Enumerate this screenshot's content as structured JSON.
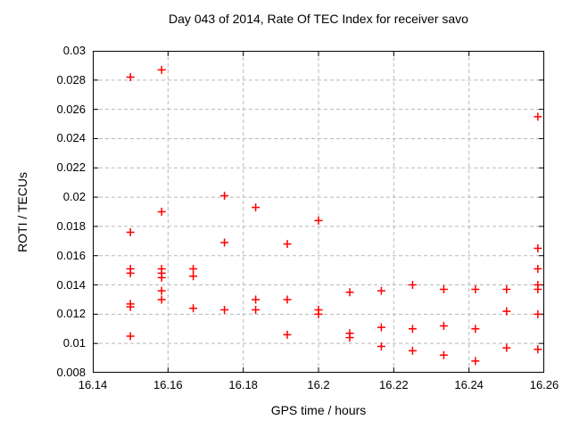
{
  "chart_data": {
    "type": "scatter",
    "title": "Day 043 of 2014, Rate Of TEC Index for receiver savo",
    "xlabel": "GPS time / hours",
    "ylabel": "ROTI / TECUs",
    "xlim": [
      16.14,
      16.26
    ],
    "ylim": [
      0.008,
      0.03
    ],
    "xtick_values": [
      16.14,
      16.16,
      16.18,
      16.2,
      16.22,
      16.24,
      16.26
    ],
    "xtick_labels": [
      "16.14",
      "16.16",
      "16.18",
      "16.2",
      "16.22",
      "16.24",
      "16.26"
    ],
    "ytick_values": [
      0.008,
      0.01,
      0.012,
      0.014,
      0.016,
      0.018,
      0.02,
      0.022,
      0.024,
      0.026,
      0.028,
      0.03
    ],
    "ytick_labels": [
      "0.008",
      "0.01",
      "0.012",
      "0.014",
      "0.016",
      "0.018",
      "0.02",
      "0.022",
      "0.024",
      "0.026",
      "0.028",
      "0.03"
    ],
    "grid": true,
    "legend": false,
    "marker": "plus",
    "marker_color": "#ff0000",
    "grid_color": "#b8b8b8",
    "border_color": "#000000",
    "series": [
      {
        "name": "ROTI",
        "points": [
          [
            16.15,
            0.0282
          ],
          [
            16.15,
            0.0176
          ],
          [
            16.15,
            0.0151
          ],
          [
            16.15,
            0.0148
          ],
          [
            16.15,
            0.0127
          ],
          [
            16.15,
            0.0125
          ],
          [
            16.15,
            0.0105
          ],
          [
            16.1583,
            0.0287
          ],
          [
            16.1583,
            0.019
          ],
          [
            16.1583,
            0.0151
          ],
          [
            16.1583,
            0.0148
          ],
          [
            16.1583,
            0.0145
          ],
          [
            16.1583,
            0.0136
          ],
          [
            16.1583,
            0.013
          ],
          [
            16.1667,
            0.0151
          ],
          [
            16.1667,
            0.0146
          ],
          [
            16.1667,
            0.0124
          ],
          [
            16.175,
            0.0201
          ],
          [
            16.175,
            0.0169
          ],
          [
            16.175,
            0.0123
          ],
          [
            16.1833,
            0.0193
          ],
          [
            16.1833,
            0.013
          ],
          [
            16.1833,
            0.0123
          ],
          [
            16.1917,
            0.0168
          ],
          [
            16.1917,
            0.013
          ],
          [
            16.1917,
            0.0106
          ],
          [
            16.2,
            0.0184
          ],
          [
            16.2,
            0.0123
          ],
          [
            16.2,
            0.012
          ],
          [
            16.2083,
            0.0135
          ],
          [
            16.2083,
            0.0107
          ],
          [
            16.2083,
            0.0104
          ],
          [
            16.2167,
            0.0136
          ],
          [
            16.2167,
            0.0111
          ],
          [
            16.2167,
            0.0098
          ],
          [
            16.225,
            0.014
          ],
          [
            16.225,
            0.011
          ],
          [
            16.225,
            0.0095
          ],
          [
            16.2333,
            0.0137
          ],
          [
            16.2333,
            0.0112
          ],
          [
            16.2333,
            0.0092
          ],
          [
            16.2417,
            0.0137
          ],
          [
            16.2417,
            0.011
          ],
          [
            16.2417,
            0.0088
          ],
          [
            16.25,
            0.0137
          ],
          [
            16.25,
            0.0122
          ],
          [
            16.25,
            0.0097
          ],
          [
            16.2583,
            0.0255
          ],
          [
            16.2583,
            0.0165
          ],
          [
            16.2583,
            0.0151
          ],
          [
            16.2583,
            0.014
          ],
          [
            16.2583,
            0.0137
          ],
          [
            16.2583,
            0.012
          ],
          [
            16.2583,
            0.0096
          ]
        ]
      }
    ]
  }
}
